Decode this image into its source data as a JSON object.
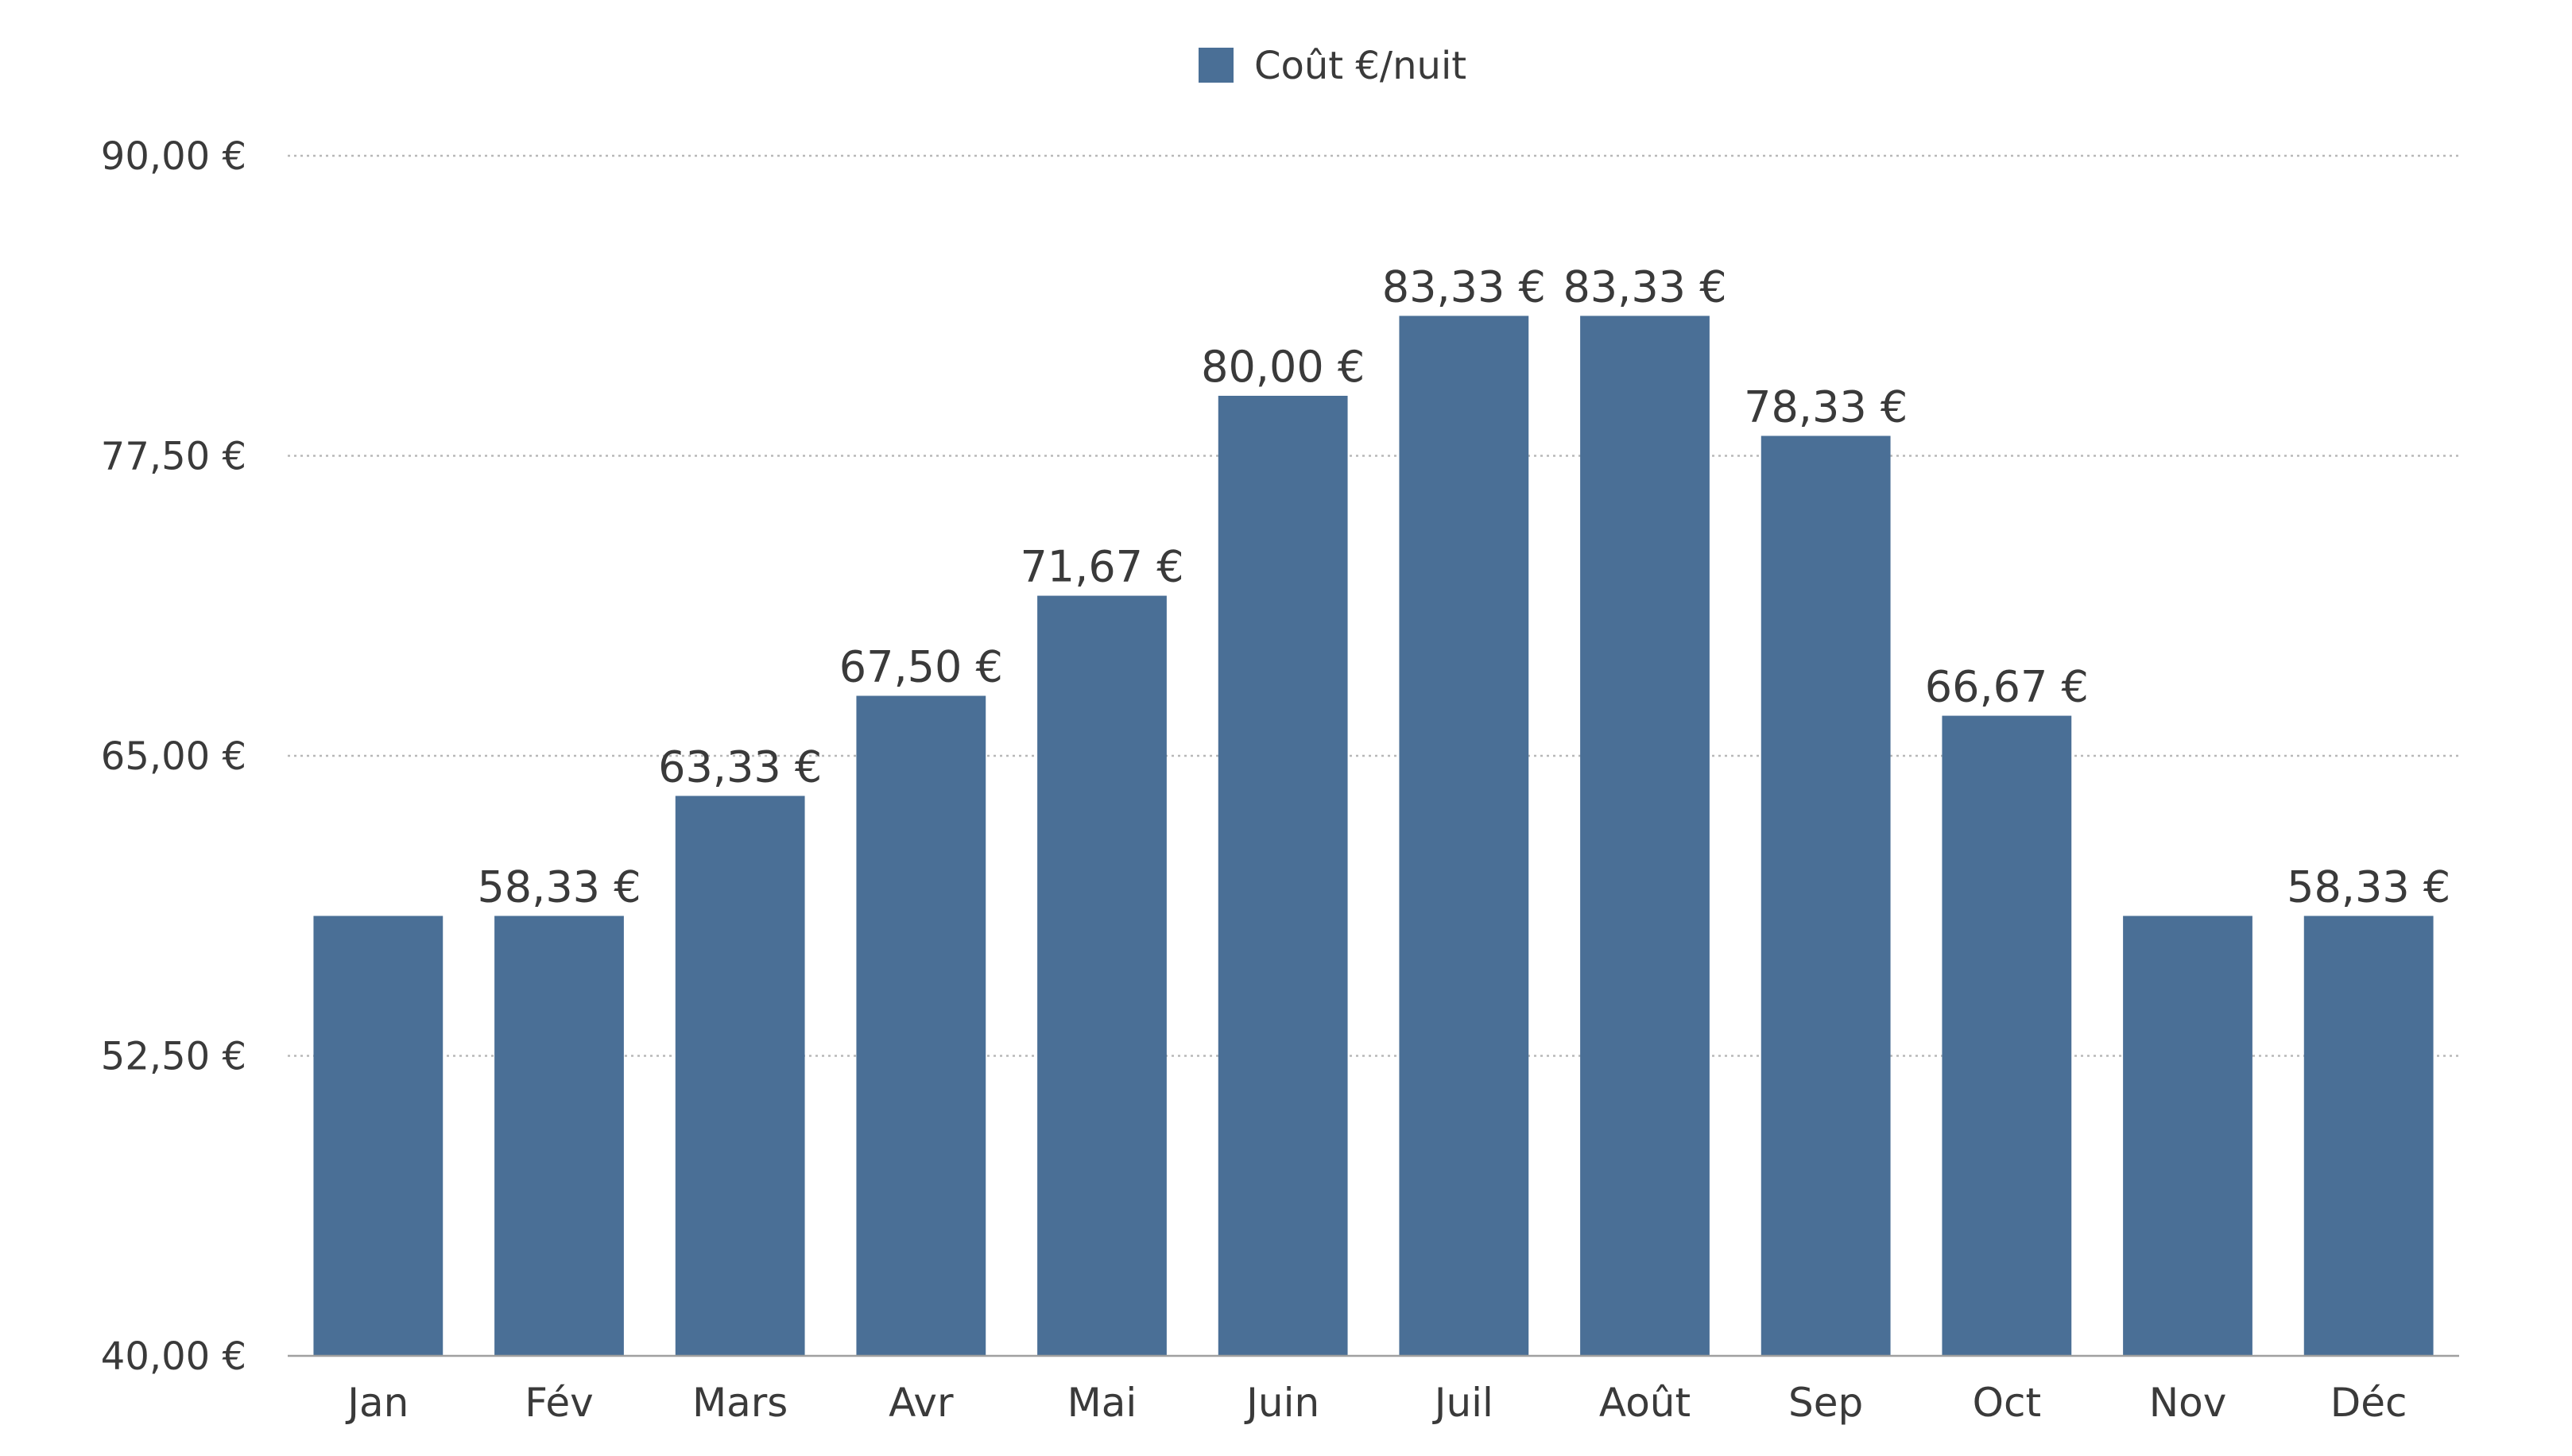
{
  "chart_data": {
    "type": "bar",
    "categories": [
      "Jan",
      "Fév",
      "Mars",
      "Avr",
      "Mai",
      "Juin",
      "Juil",
      "Août",
      "Sep",
      "Oct",
      "Nov",
      "Déc"
    ],
    "series": [
      {
        "name": "Coût €/nuit",
        "color": "#4a6f96",
        "values": [
          58.33,
          58.33,
          63.33,
          67.5,
          71.67,
          80.0,
          83.33,
          83.33,
          78.33,
          66.67,
          58.33,
          58.33
        ],
        "data_labels": [
          "",
          "58,33 €",
          "63,33 €",
          "67,50 €",
          "71,67 €",
          "80,00 €",
          "83,33 €",
          "83,33 €",
          "78,33 €",
          "66,67 €",
          "",
          "58,33 €"
        ]
      }
    ],
    "ylim": [
      40,
      90
    ],
    "y_ticks": [
      40,
      52.5,
      65,
      77.5,
      90
    ],
    "y_tick_labels": [
      "40,00 €",
      "52,50 €",
      "65,00 €",
      "77,50 €",
      "90,00 €"
    ],
    "grid": true,
    "legend": {
      "position": "top-center",
      "label": "Coût €/nuit"
    },
    "title": "",
    "xlabel": "",
    "ylabel": ""
  }
}
